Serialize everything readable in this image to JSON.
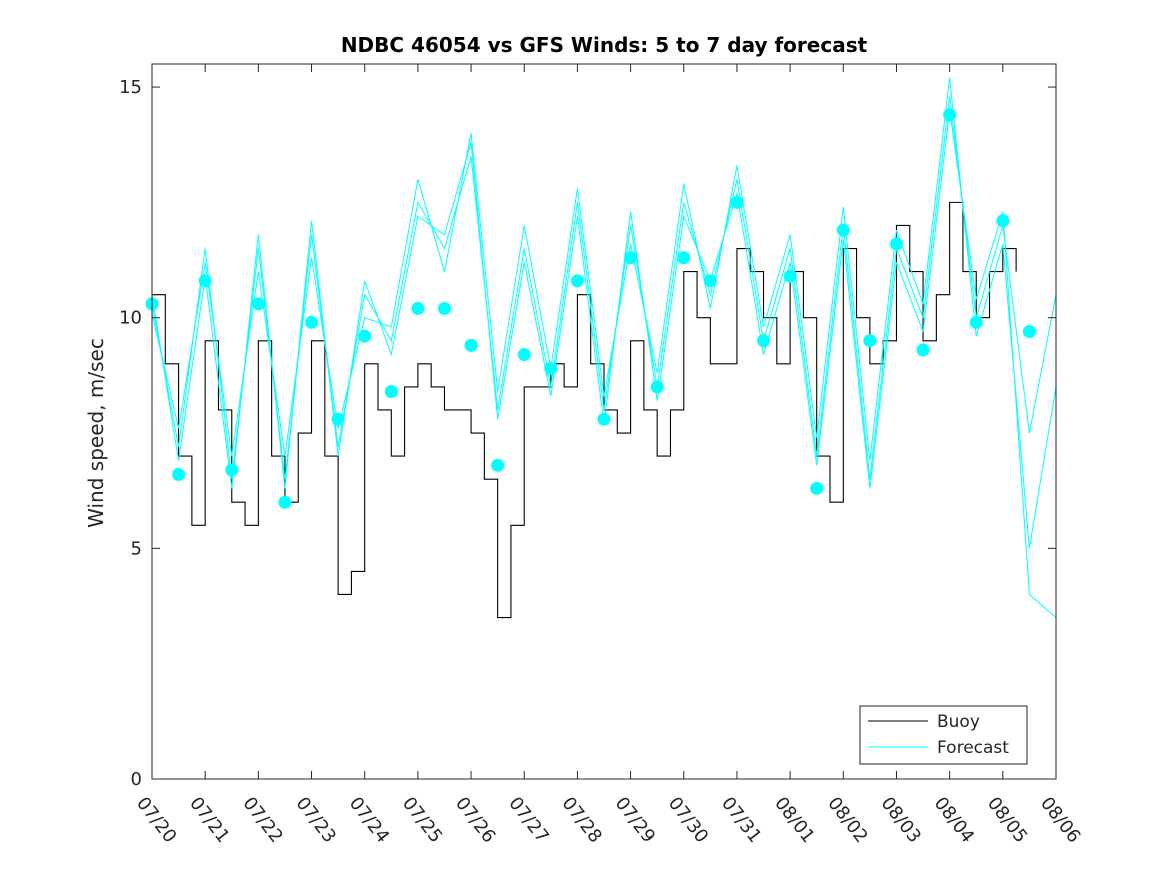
{
  "chart_data": {
    "type": "line",
    "title": "NDBC 46054 vs GFS Winds: 5 to 7 day forecast",
    "xlabel": "",
    "ylabel": "Wind speed, m/sec",
    "x_tick_labels": [
      "07/20",
      "07/21",
      "07/22",
      "07/23",
      "07/24",
      "07/25",
      "07/26",
      "07/27",
      "07/28",
      "07/29",
      "07/30",
      "07/31",
      "08/01",
      "08/02",
      "08/03",
      "08/04",
      "08/05",
      "08/06"
    ],
    "xlim_days": [
      0,
      17
    ],
    "ylim": [
      0,
      15.5
    ],
    "y_ticks": [
      0,
      5,
      10,
      15
    ],
    "grid": false,
    "legend_position": "bottom-right",
    "colors": {
      "buoy": "#000000",
      "forecast": "#00ffff"
    },
    "series": [
      {
        "name": "Buoy",
        "style": "line",
        "x": [
          0,
          0.25,
          0.5,
          0.75,
          1,
          1.25,
          1.5,
          1.75,
          2,
          2.25,
          2.5,
          2.75,
          3,
          3.25,
          3.5,
          3.75,
          4,
          4.25,
          4.5,
          4.75,
          5,
          5.25,
          5.5,
          5.75,
          6,
          6.25,
          6.5,
          6.75,
          7,
          7.25,
          7.5,
          7.75,
          8,
          8.25,
          8.5,
          8.75,
          9,
          9.25,
          9.5,
          9.75,
          10,
          10.25,
          10.5,
          10.75,
          11,
          11.25,
          11.5,
          11.75,
          12,
          12.25,
          12.5,
          12.75,
          13,
          13.25,
          13.5,
          13.75,
          14,
          14.25,
          14.5,
          14.75,
          15,
          15.25,
          15.5,
          15.75,
          16,
          16.25
        ],
        "values": [
          10.5,
          9,
          7,
          5.5,
          9.5,
          8,
          6,
          5.5,
          9.5,
          7,
          6,
          7.5,
          9.5,
          7,
          4,
          4.5,
          9,
          8,
          7,
          8.5,
          9,
          8.5,
          8,
          8,
          7.5,
          6.5,
          3.5,
          5.5,
          8.5,
          8.5,
          9,
          8.5,
          10.5,
          9,
          8,
          7.5,
          9.5,
          8,
          7,
          8,
          11,
          10,
          9,
          9,
          11.5,
          11,
          10,
          9,
          11,
          10,
          7,
          6,
          11.5,
          10,
          9,
          9.5,
          12,
          11,
          9.5,
          10.5,
          12.5,
          11,
          10,
          11,
          11.5,
          11
        ]
      },
      {
        "name": "Forecast",
        "style": "line",
        "x": [
          0,
          0.5,
          1,
          1.5,
          2,
          2.5,
          3,
          3.5,
          4,
          4.5,
          5,
          5.5,
          6,
          6.5,
          7,
          7.5,
          8,
          8.5,
          9,
          9.5,
          10,
          10.5,
          11,
          11.5,
          12,
          12.5,
          13,
          13.5,
          14,
          14.5,
          15,
          15.5,
          16,
          16.5,
          17
        ],
        "values": [
          10.3,
          7.2,
          11.5,
          6.5,
          11.5,
          6.5,
          11.8,
          7.2,
          10.5,
          9.5,
          12.5,
          11.5,
          13.5,
          8,
          11.5,
          8.5,
          12.5,
          8,
          12,
          8.5,
          12.5,
          10.5,
          13,
          9.5,
          11.5,
          7,
          12,
          6.5,
          11.5,
          10,
          14.8,
          10,
          12,
          7.5,
          10.5
        ]
      },
      {
        "name": "Forecast",
        "style": "line",
        "x": [
          0,
          0.5,
          1,
          1.5,
          2,
          2.5,
          3,
          3.5,
          4,
          4.5,
          5,
          5.5,
          6,
          6.5,
          7,
          7.5,
          8,
          8.5,
          9,
          9.5,
          10,
          10.5,
          11,
          11.5,
          12,
          12.5,
          13,
          13.5,
          14,
          14.5,
          15,
          15.5,
          16,
          16.5,
          17
        ],
        "values": [
          10.1,
          7.6,
          11.2,
          7,
          11,
          7,
          11.3,
          7.6,
          10,
          9.8,
          13,
          11,
          14,
          8.4,
          12,
          8.9,
          12.8,
          8.3,
          11.6,
          8.8,
          12.9,
          10.2,
          13.3,
          9.8,
          11.8,
          7.4,
          12.4,
          6.9,
          11.9,
          10.3,
          15.2,
          9.6,
          11.6,
          5,
          8.5
        ]
      },
      {
        "name": "Forecast",
        "style": "line",
        "x": [
          0,
          0.5,
          1,
          1.5,
          2,
          2.5,
          3,
          3.5,
          4,
          4.5,
          5,
          5.5,
          6,
          6.5,
          7,
          7.5,
          8,
          8.5,
          9,
          9.5,
          10,
          10.5,
          11,
          11.5,
          12,
          12.5,
          13,
          13.5,
          14,
          14.5,
          15,
          15.5,
          16,
          16.5,
          17
        ],
        "values": [
          10.5,
          6.9,
          10.9,
          6.3,
          11.8,
          6.3,
          12.1,
          7,
          10.8,
          9.2,
          12.2,
          11.8,
          13.8,
          7.8,
          11.2,
          8.3,
          12.2,
          7.7,
          12.3,
          8.2,
          12.2,
          10.8,
          12.7,
          9.2,
          11.2,
          6.8,
          11.7,
          6.3,
          11.2,
          9.7,
          14.5,
          10.4,
          12.3,
          4,
          3.5
        ]
      },
      {
        "name": "Forecast",
        "style": "markers",
        "x": [
          0,
          0.5,
          1,
          1.5,
          2,
          2.5,
          3,
          3.5,
          4,
          4.5,
          5,
          5.5,
          6,
          6.5,
          7,
          7.5,
          8,
          8.5,
          9,
          9.5,
          10,
          10.5,
          11,
          11.5,
          12,
          12.5,
          13,
          13.5,
          14,
          14.5,
          15,
          15.5,
          16,
          16.5
        ],
        "values": [
          10.3,
          6.6,
          10.8,
          6.7,
          10.3,
          6,
          9.9,
          7.8,
          9.6,
          8.4,
          10.2,
          10.2,
          9.4,
          6.8,
          9.2,
          8.9,
          10.8,
          7.8,
          11.3,
          8.5,
          11.3,
          10.8,
          12.5,
          9.5,
          10.9,
          6.3,
          11.9,
          9.5,
          11.6,
          9.3,
          14.4,
          9.9,
          12.1,
          9.7
        ]
      }
    ]
  }
}
